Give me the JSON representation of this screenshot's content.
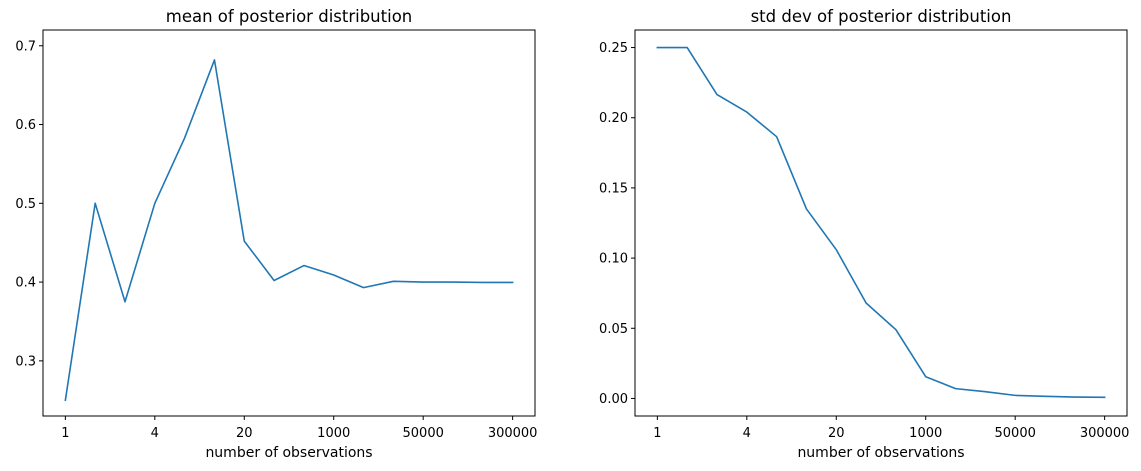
{
  "colors": {
    "series": "#1f77b4"
  },
  "chart_data": [
    {
      "type": "line",
      "title": "mean of posterior distribution",
      "xlabel": "number of observations",
      "ylabel": "",
      "x_tick_labels": [
        "1",
        "4",
        "20",
        "1000",
        "50000",
        "300000"
      ],
      "x_tick_indices": [
        0,
        3,
        6,
        9,
        12,
        15
      ],
      "y_ticks": [
        0.3,
        0.4,
        0.5,
        0.6,
        0.7
      ],
      "y_tick_labels": [
        "0.3",
        "0.4",
        "0.5",
        "0.6",
        "0.7"
      ],
      "ylim": [
        0.23,
        0.72
      ],
      "xlim": [
        -0.75,
        15.75
      ],
      "grid": false,
      "series": [
        {
          "values": [
            0.25,
            0.5,
            0.375,
            0.5,
            0.583,
            0.682,
            0.452,
            0.402,
            0.421,
            0.409,
            0.393,
            0.401,
            0.4,
            0.4,
            0.3995,
            0.3995
          ]
        }
      ]
    },
    {
      "type": "line",
      "title": "std dev of posterior distribution",
      "xlabel": "number of observations",
      "ylabel": "",
      "x_tick_labels": [
        "1",
        "4",
        "20",
        "1000",
        "50000",
        "300000"
      ],
      "x_tick_indices": [
        0,
        3,
        6,
        9,
        12,
        15
      ],
      "y_ticks": [
        0.0,
        0.05,
        0.1,
        0.15,
        0.2,
        0.25
      ],
      "y_tick_labels": [
        "0.00",
        "0.05",
        "0.10",
        "0.15",
        "0.20",
        "0.25"
      ],
      "ylim": [
        -0.0125,
        0.2625
      ],
      "xlim": [
        -0.75,
        15.75
      ],
      "grid": false,
      "series": [
        {
          "values": [
            0.25,
            0.25,
            0.2165,
            0.204,
            0.1865,
            0.135,
            0.106,
            0.068,
            0.049,
            0.0155,
            0.007,
            0.0048,
            0.0022,
            0.0015,
            0.001,
            0.0008
          ]
        }
      ]
    }
  ]
}
